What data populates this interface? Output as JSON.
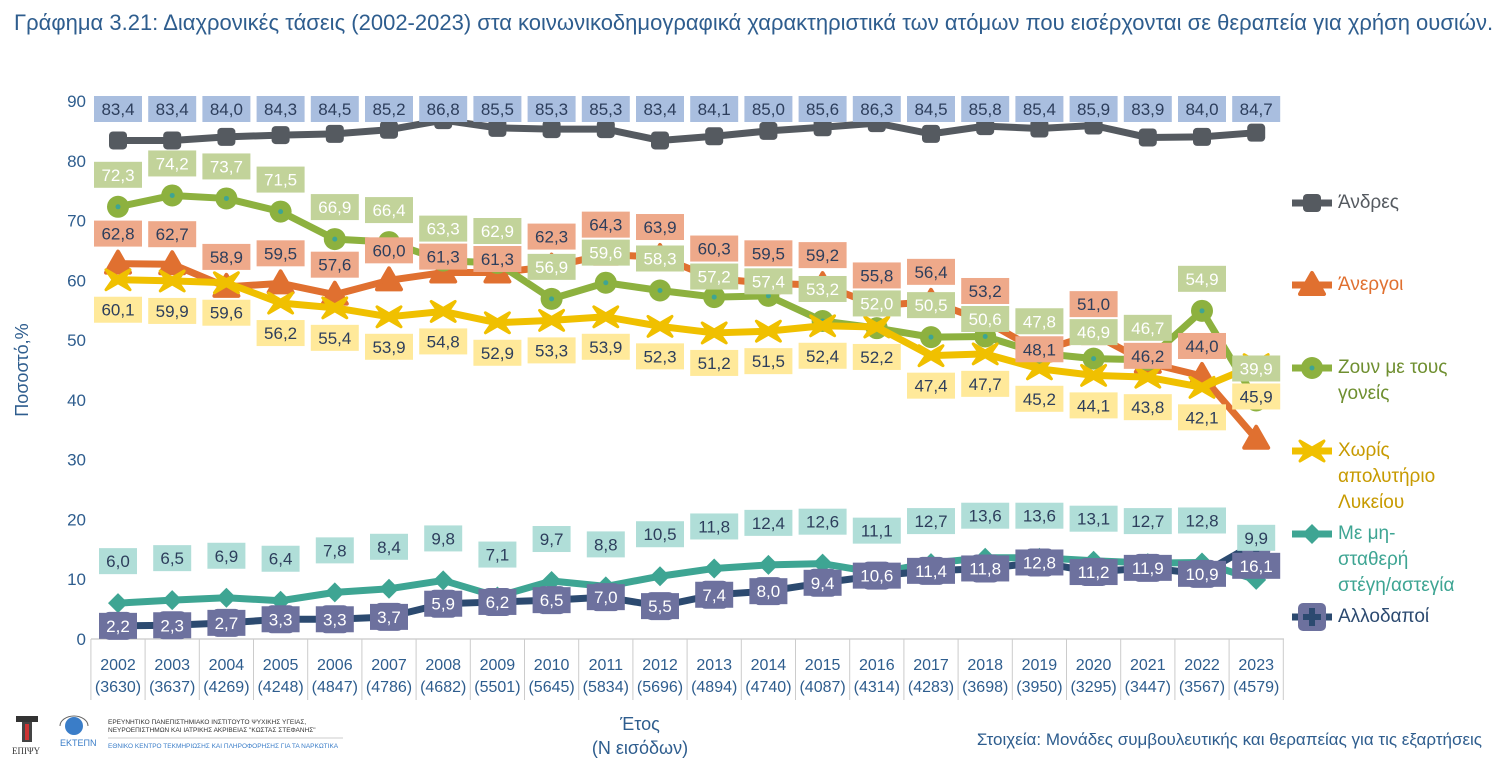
{
  "title": "Γράφημα 3.21: Διαχρονικές τάσεις (2002-2023) στα κοινωνικοδημογραφικά χαρακτηριστικά των ατόμων που εισέρχονται σε θεραπεία για χρήση ουσιών.",
  "source": "Στοιχεία: Μονάδες συμβουλευτικής και θεραπείας για τις εξαρτήσεις",
  "logos": {
    "left": "ΕΠΙΨΥ",
    "middle": "ΕΚΤΕΠΝ",
    "line1": "ΕΡΕΥΝΗΤΙΚΟ ΠΑΝΕΠΙΣΤΗΜΙΑΚΟ ΙΝΣΤΙΤΟΥΤΟ ΨΥΧΙΚΗΣ ΥΓΕΙΑΣ, ΝΕΥΡΟΕΠΙΣΤΗΜΩΝ ΚΑΙ ΙΑΤΡΙΚΗΣ ΑΚΡΙΒΕΙΑΣ \"ΚΩΣΤΑΣ ΣΤΕΦΑΝΗΣ\"",
    "line2": "ΕΘΝΙΚΟ ΚΕΝΤΡΟ ΤΕΚΜΗΡΙΩΣΗΣ ΚΑΙ ΠΛΗΡΟΦΟΡΗΣΗΣ ΓΙΑ ΤΑ ΝΑΡΚΩΤΙΚΑ"
  },
  "chart_data": {
    "type": "line",
    "xlabel": "Έτος",
    "xlabel2": "(Ν εισόδων)",
    "ylabel": "Ποσοστό,%",
    "ylim": [
      0,
      90
    ],
    "yticks": [
      0,
      10,
      20,
      30,
      40,
      50,
      60,
      70,
      80,
      90
    ],
    "grid": false,
    "legend_placement": "right",
    "categories": [
      "2002",
      "2003",
      "2004",
      "2005",
      "2006",
      "2007",
      "2008",
      "2009",
      "2010",
      "2011",
      "2012",
      "2013",
      "2014",
      "2015",
      "2016",
      "2017",
      "2018",
      "2019",
      "2020",
      "2021",
      "2022",
      "2023"
    ],
    "n_entries": [
      "(3630)",
      "(3637)",
      "(4269)",
      "(4248)",
      "(4847)",
      "(4786)",
      "(4682)",
      "(5501)",
      "(5645)",
      "(5834)",
      "(5696)",
      "(4894)",
      "(4740)",
      "(4087)",
      "(4314)",
      "(4283)",
      "(3698)",
      "(3950)",
      "(3295)",
      "(3447)",
      "(3567)",
      "(4579)"
    ],
    "series": [
      {
        "name": "Άνδρες",
        "color": "#555a60",
        "label_bg": "#a9bedf",
        "label_fg": "#2d3e5c",
        "marker": "square",
        "values": [
          83.4,
          83.4,
          84.0,
          84.3,
          84.5,
          85.2,
          86.8,
          85.5,
          85.3,
          85.3,
          83.4,
          84.1,
          85.0,
          85.6,
          86.3,
          84.5,
          85.8,
          85.4,
          85.9,
          83.9,
          84.0,
          84.7
        ]
      },
      {
        "name": "Άνεργοι",
        "color": "#e07030",
        "label_bg": "#eea98a",
        "label_fg": "#2d3e5c",
        "marker": "triangle",
        "values": [
          62.8,
          62.7,
          58.9,
          59.5,
          57.6,
          60.0,
          61.3,
          61.3,
          62.3,
          64.3,
          63.9,
          60.3,
          59.5,
          59.2,
          55.8,
          56.4,
          53.2,
          48.1,
          51.0,
          46.2,
          44.0,
          33.5
        ],
        "labels": [
          "62,8",
          "62,7",
          "58,9",
          "59,5",
          "57,6",
          "60,0",
          "61,3",
          "61,3",
          "62,3",
          "64,3",
          "63,9",
          "60,3",
          "59,5",
          "59,2",
          "55,8",
          "56,4",
          "53,2",
          "48,1",
          "51,0",
          "46,2",
          "44,0",
          ""
        ]
      },
      {
        "name": "Ζουν με τους γονείς",
        "color": "#8db13f",
        "label_bg": "#c2d39a",
        "label_fg": "#ffffff",
        "marker": "circle",
        "values": [
          72.3,
          74.2,
          73.7,
          71.5,
          66.9,
          66.4,
          63.3,
          62.9,
          56.9,
          59.6,
          58.3,
          57.2,
          57.4,
          53.2,
          52.0,
          50.5,
          50.6,
          47.8,
          46.9,
          46.7,
          54.9,
          39.9
        ]
      },
      {
        "name": "Χωρίς απολυτήριο Λυκείου",
        "color": "#f0c000",
        "label_bg": "#ffe99a",
        "label_fg": "#2d3e5c",
        "marker": "star",
        "values": [
          60.1,
          59.9,
          59.6,
          56.2,
          55.4,
          53.9,
          54.8,
          52.9,
          53.3,
          53.9,
          52.3,
          51.2,
          51.5,
          52.4,
          52.2,
          47.4,
          47.7,
          45.2,
          44.1,
          43.8,
          42.1,
          45.9
        ]
      },
      {
        "name": "Με μη-σταθερή στέγη/αστεγία",
        "color": "#3ea593",
        "label_bg": "#b0ded8",
        "label_fg": "#2d3e5c",
        "marker": "diamond",
        "values": [
          6.0,
          6.5,
          6.9,
          6.4,
          7.8,
          8.4,
          9.8,
          7.1,
          9.7,
          8.8,
          10.5,
          11.8,
          12.4,
          12.6,
          11.1,
          12.7,
          13.6,
          13.6,
          13.1,
          12.7,
          12.8,
          9.9
        ]
      },
      {
        "name": "Αλλοδαποί",
        "color": "#2c4a70",
        "label_bg": "#6d719e",
        "label_fg": "#ffffff",
        "marker": "plus",
        "values": [
          2.2,
          2.3,
          2.7,
          3.3,
          3.3,
          3.7,
          5.9,
          6.2,
          6.5,
          7.0,
          5.5,
          7.4,
          8.0,
          9.4,
          10.6,
          11.4,
          11.8,
          12.8,
          11.2,
          11.9,
          10.9,
          16.1
        ]
      }
    ],
    "legend_lines": [
      [
        "Άνδρες"
      ],
      [
        "Άνεργοι"
      ],
      [
        "Ζουν με τους",
        "γονείς"
      ],
      [
        "Χωρίς",
        "απολυτήριο",
        "Λυκείου"
      ],
      [
        "Με μη-",
        "σταθερή",
        "στέγη/αστεγία"
      ],
      [
        "Αλλοδαποί"
      ]
    ],
    "legend_text_colors": [
      "#555a60",
      "#e07030",
      "#6f8f30",
      "#c79a00",
      "#3ea593",
      "#2c4a70"
    ]
  }
}
